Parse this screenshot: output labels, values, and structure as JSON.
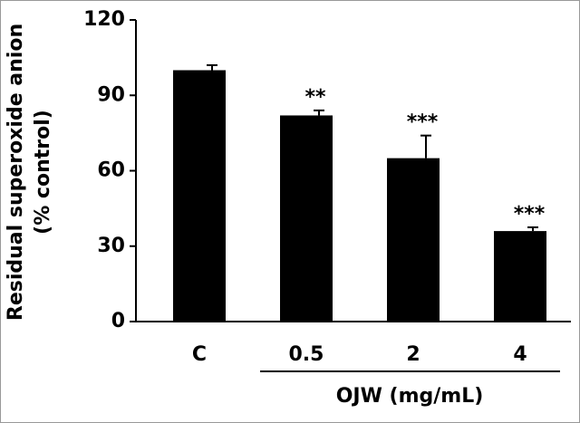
{
  "chart_data": {
    "type": "bar",
    "y_label": [
      "Residual superoxide anion",
      "(% control)"
    ],
    "x_label": "OJW (mg/mL)",
    "categories": [
      "C",
      "0.5",
      "2",
      "4"
    ],
    "values": [
      100,
      82,
      65,
      36
    ],
    "errors": [
      2,
      2,
      9,
      1.5
    ],
    "annotations": [
      null,
      "**",
      "***",
      "***"
    ],
    "color": "#000000",
    "ylim": [
      0,
      120
    ],
    "yticks": [
      0,
      30,
      60,
      90,
      120
    ]
  }
}
